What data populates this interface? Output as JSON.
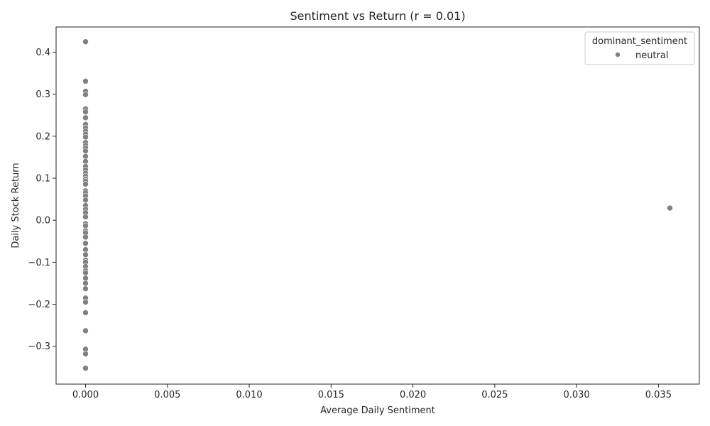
{
  "chart_data": {
    "type": "scatter",
    "title": "Sentiment vs Return (r = 0.01)",
    "xlabel": "Average Daily Sentiment",
    "ylabel": "Daily Stock Return",
    "xlim": [
      -0.0018,
      0.0375
    ],
    "ylim": [
      -0.39,
      0.46
    ],
    "x_ticks": [
      0.0,
      0.005,
      0.01,
      0.015,
      0.02,
      0.025,
      0.03,
      0.035
    ],
    "x_tick_labels": [
      "0.000",
      "0.005",
      "0.010",
      "0.015",
      "0.020",
      "0.025",
      "0.030",
      "0.035"
    ],
    "y_ticks": [
      -0.3,
      -0.2,
      -0.1,
      0.0,
      0.1,
      0.2,
      0.3,
      0.4
    ],
    "y_tick_labels": [
      "−0.3",
      "−0.2",
      "−0.1",
      "0.0",
      "0.1",
      "0.2",
      "0.3",
      "0.4"
    ],
    "grid": false,
    "legend": {
      "title": "dominant_sentiment",
      "placement": "top-right",
      "entries": [
        "neutral"
      ]
    },
    "series": [
      {
        "name": "neutral",
        "color": "#808080",
        "points": [
          [
            0.0,
            0.425
          ],
          [
            0.0,
            0.331
          ],
          [
            0.0,
            0.307
          ],
          [
            0.0,
            0.299
          ],
          [
            0.0,
            0.265
          ],
          [
            0.0,
            0.258
          ],
          [
            0.0,
            0.244
          ],
          [
            0.0,
            0.228
          ],
          [
            0.0,
            0.22
          ],
          [
            0.0,
            0.212
          ],
          [
            0.0,
            0.205
          ],
          [
            0.0,
            0.198
          ],
          [
            0.0,
            0.185
          ],
          [
            0.0,
            0.178
          ],
          [
            0.0,
            0.172
          ],
          [
            0.0,
            0.165
          ],
          [
            0.0,
            0.152
          ],
          [
            0.0,
            0.14
          ],
          [
            0.0,
            0.128
          ],
          [
            0.0,
            0.12
          ],
          [
            0.0,
            0.112
          ],
          [
            0.0,
            0.105
          ],
          [
            0.0,
            0.098
          ],
          [
            0.0,
            0.093
          ],
          [
            0.0,
            0.086
          ],
          [
            0.0,
            0.07
          ],
          [
            0.0,
            0.065
          ],
          [
            0.0,
            0.058
          ],
          [
            0.0,
            0.048
          ],
          [
            0.0,
            0.035
          ],
          [
            0.0,
            0.026
          ],
          [
            0.0,
            0.018
          ],
          [
            0.0,
            0.008
          ],
          [
            0.0,
            -0.008
          ],
          [
            0.0,
            -0.013
          ],
          [
            0.0,
            -0.025
          ],
          [
            0.0,
            -0.03
          ],
          [
            0.0,
            -0.04
          ],
          [
            0.0,
            -0.055
          ],
          [
            0.0,
            -0.07
          ],
          [
            0.0,
            -0.082
          ],
          [
            0.0,
            -0.095
          ],
          [
            0.0,
            -0.1
          ],
          [
            0.0,
            -0.11
          ],
          [
            0.0,
            -0.12
          ],
          [
            0.0,
            -0.125
          ],
          [
            0.0,
            -0.138
          ],
          [
            0.0,
            -0.15
          ],
          [
            0.0,
            -0.163
          ],
          [
            0.0,
            -0.185
          ],
          [
            0.0,
            -0.195
          ],
          [
            0.0,
            -0.22
          ],
          [
            0.0,
            -0.263
          ],
          [
            0.0,
            -0.307
          ],
          [
            0.0,
            -0.318
          ],
          [
            0.0,
            -0.352
          ],
          [
            0.0357,
            0.029
          ]
        ]
      }
    ]
  }
}
